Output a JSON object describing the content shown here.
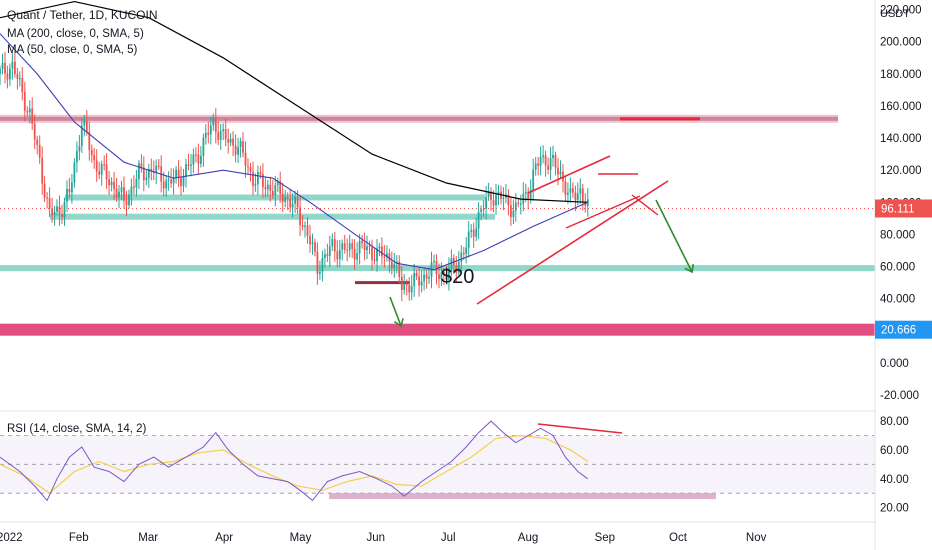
{
  "header": {
    "title": "Quant / Tether, 1D, KUCOIN",
    "ma200": "MA (200, close, 0, SMA, 5)",
    "ma50": "MA (50, close, 0, SMA, 5)"
  },
  "annotation_text": "$20",
  "rsi_pane": {
    "label": "RSI (14, close, SMA, 14, 2)"
  },
  "colors": {
    "up": "#26a69a",
    "down": "#ef5350",
    "ma200": "#000000",
    "ma50": "#3f3fb8",
    "rsi": "#7e57c2",
    "rsi_ma": "#f5d04a",
    "support": "#7dcfc0",
    "resistance": "#7a1020",
    "pink_zone": "#e0457b",
    "drawing_red": "#e8283c",
    "arrow_green": "#2e8b2e",
    "price_tag": "#ef5350",
    "level_tag": "#2196f3"
  },
  "chart_data": [
    {
      "type": "candlestick",
      "title": "Quant / Tether, 1D, KUCOIN",
      "y_axis_unit": "USDT",
      "y_ticks": [
        "220.000",
        "200.000",
        "180.000",
        "160.000",
        "140.000",
        "120.000",
        "100.000",
        "80.000",
        "60.000",
        "40.000",
        "20.000",
        "0.000",
        "-20.000"
      ],
      "ylim": [
        -30,
        226
      ],
      "x_ticks": [
        "2022",
        "Feb",
        "Mar",
        "Apr",
        "May",
        "Jun",
        "Jul",
        "Aug",
        "Sep",
        "Oct",
        "Nov"
      ],
      "x_tick_days": [
        0,
        31,
        59,
        90,
        120,
        151,
        181,
        212,
        243,
        273,
        304
      ],
      "last_price_tag": "96.111",
      "level_tag": "20.666",
      "key_prices": [
        {
          "day": 0,
          "price": 180
        },
        {
          "day": 5,
          "price": 185
        },
        {
          "day": 12,
          "price": 155
        },
        {
          "day": 16,
          "price": 125
        },
        {
          "day": 20,
          "price": 92
        },
        {
          "day": 24,
          "price": 95
        },
        {
          "day": 28,
          "price": 105
        },
        {
          "day": 33,
          "price": 150
        },
        {
          "day": 38,
          "price": 125
        },
        {
          "day": 45,
          "price": 112
        },
        {
          "day": 50,
          "price": 100
        },
        {
          "day": 56,
          "price": 118
        },
        {
          "day": 62,
          "price": 120
        },
        {
          "day": 68,
          "price": 112
        },
        {
          "day": 74,
          "price": 118
        },
        {
          "day": 80,
          "price": 130
        },
        {
          "day": 86,
          "price": 150
        },
        {
          "day": 90,
          "price": 140
        },
        {
          "day": 96,
          "price": 135
        },
        {
          "day": 102,
          "price": 115
        },
        {
          "day": 108,
          "price": 110
        },
        {
          "day": 114,
          "price": 105
        },
        {
          "day": 120,
          "price": 95
        },
        {
          "day": 124,
          "price": 80
        },
        {
          "day": 128,
          "price": 60
        },
        {
          "day": 134,
          "price": 72
        },
        {
          "day": 140,
          "price": 70
        },
        {
          "day": 146,
          "price": 72
        },
        {
          "day": 152,
          "price": 68
        },
        {
          "day": 158,
          "price": 65
        },
        {
          "day": 162,
          "price": 48
        },
        {
          "day": 168,
          "price": 50
        },
        {
          "day": 174,
          "price": 58
        },
        {
          "day": 180,
          "price": 55
        },
        {
          "day": 184,
          "price": 62
        },
        {
          "day": 188,
          "price": 72
        },
        {
          "day": 193,
          "price": 92
        },
        {
          "day": 198,
          "price": 105
        },
        {
          "day": 203,
          "price": 102
        },
        {
          "day": 208,
          "price": 95
        },
        {
          "day": 213,
          "price": 108
        },
        {
          "day": 218,
          "price": 128
        },
        {
          "day": 222,
          "price": 125
        },
        {
          "day": 226,
          "price": 118
        },
        {
          "day": 230,
          "price": 102
        },
        {
          "day": 234,
          "price": 108
        },
        {
          "day": 237,
          "price": 96.111
        }
      ],
      "ma200": [
        {
          "day": 0,
          "price": 215
        },
        {
          "day": 30,
          "price": 225
        },
        {
          "day": 60,
          "price": 215
        },
        {
          "day": 90,
          "price": 190
        },
        {
          "day": 120,
          "price": 160
        },
        {
          "day": 150,
          "price": 130
        },
        {
          "day": 180,
          "price": 112
        },
        {
          "day": 210,
          "price": 102
        },
        {
          "day": 237,
          "price": 100
        }
      ],
      "ma50": [
        {
          "day": 0,
          "price": 205
        },
        {
          "day": 15,
          "price": 180
        },
        {
          "day": 30,
          "price": 150
        },
        {
          "day": 50,
          "price": 125
        },
        {
          "day": 70,
          "price": 115
        },
        {
          "day": 90,
          "price": 120
        },
        {
          "day": 110,
          "price": 115
        },
        {
          "day": 125,
          "price": 100
        },
        {
          "day": 145,
          "price": 78
        },
        {
          "day": 160,
          "price": 62
        },
        {
          "day": 175,
          "price": 58
        },
        {
          "day": 195,
          "price": 70
        },
        {
          "day": 215,
          "price": 85
        },
        {
          "day": 237,
          "price": 100
        }
      ],
      "horizontal_levels": [
        {
          "price": 152,
          "kind": "resistance"
        },
        {
          "price": 103,
          "kind": "support"
        },
        {
          "price": 91,
          "kind": "support"
        },
        {
          "price": 59,
          "kind": "support"
        },
        {
          "price": 50,
          "kind": "resistance_small"
        },
        {
          "price": 20.666,
          "kind": "pink_zone"
        }
      ]
    },
    {
      "type": "line",
      "title": "RSI (14, close, SMA, 14, 2)",
      "y_ticks": [
        "80.00",
        "60.00",
        "40.00",
        "20.00"
      ],
      "ylim": [
        10,
        87
      ],
      "bands": [
        70,
        50,
        30
      ],
      "series": [
        {
          "values": [
            {
              "day": 0,
              "value": 55
            },
            {
              "day": 8,
              "value": 45
            },
            {
              "day": 14,
              "value": 35
            },
            {
              "day": 19,
              "value": 25
            },
            {
              "day": 23,
              "value": 40
            },
            {
              "day": 28,
              "value": 55
            },
            {
              "day": 33,
              "value": 62
            },
            {
              "day": 38,
              "value": 48
            },
            {
              "day": 44,
              "value": 45
            },
            {
              "day": 50,
              "value": 38
            },
            {
              "day": 56,
              "value": 50
            },
            {
              "day": 62,
              "value": 55
            },
            {
              "day": 68,
              "value": 48
            },
            {
              "day": 75,
              "value": 55
            },
            {
              "day": 82,
              "value": 62
            },
            {
              "day": 87,
              "value": 72
            },
            {
              "day": 92,
              "value": 60
            },
            {
              "day": 98,
              "value": 50
            },
            {
              "day": 104,
              "value": 42
            },
            {
              "day": 110,
              "value": 40
            },
            {
              "day": 116,
              "value": 38
            },
            {
              "day": 121,
              "value": 32
            },
            {
              "day": 126,
              "value": 25
            },
            {
              "day": 132,
              "value": 38
            },
            {
              "day": 138,
              "value": 42
            },
            {
              "day": 145,
              "value": 45
            },
            {
              "day": 152,
              "value": 40
            },
            {
              "day": 158,
              "value": 35
            },
            {
              "day": 163,
              "value": 28
            },
            {
              "day": 170,
              "value": 38
            },
            {
              "day": 176,
              "value": 45
            },
            {
              "day": 182,
              "value": 52
            },
            {
              "day": 188,
              "value": 62
            },
            {
              "day": 193,
              "value": 72
            },
            {
              "day": 198,
              "value": 80
            },
            {
              "day": 203,
              "value": 72
            },
            {
              "day": 208,
              "value": 65
            },
            {
              "day": 213,
              "value": 70
            },
            {
              "day": 218,
              "value": 75
            },
            {
              "day": 223,
              "value": 70
            },
            {
              "day": 228,
              "value": 55
            },
            {
              "day": 233,
              "value": 45
            },
            {
              "day": 237,
              "value": 40
            }
          ]
        },
        {
          "values": [
            {
              "day": 0,
              "value": 50
            },
            {
              "day": 10,
              "value": 42
            },
            {
              "day": 20,
              "value": 30
            },
            {
              "day": 30,
              "value": 45
            },
            {
              "day": 40,
              "value": 52
            },
            {
              "day": 50,
              "value": 45
            },
            {
              "day": 60,
              "value": 50
            },
            {
              "day": 70,
              "value": 52
            },
            {
              "day": 80,
              "value": 58
            },
            {
              "day": 90,
              "value": 60
            },
            {
              "day": 100,
              "value": 50
            },
            {
              "day": 110,
              "value": 42
            },
            {
              "day": 120,
              "value": 35
            },
            {
              "day": 130,
              "value": 32
            },
            {
              "day": 140,
              "value": 38
            },
            {
              "day": 150,
              "value": 42
            },
            {
              "day": 160,
              "value": 36
            },
            {
              "day": 170,
              "value": 35
            },
            {
              "day": 180,
              "value": 45
            },
            {
              "day": 190,
              "value": 55
            },
            {
              "day": 200,
              "value": 68
            },
            {
              "day": 210,
              "value": 70
            },
            {
              "day": 220,
              "value": 68
            },
            {
              "day": 230,
              "value": 60
            },
            {
              "day": 237,
              "value": 52
            }
          ]
        }
      ]
    }
  ]
}
